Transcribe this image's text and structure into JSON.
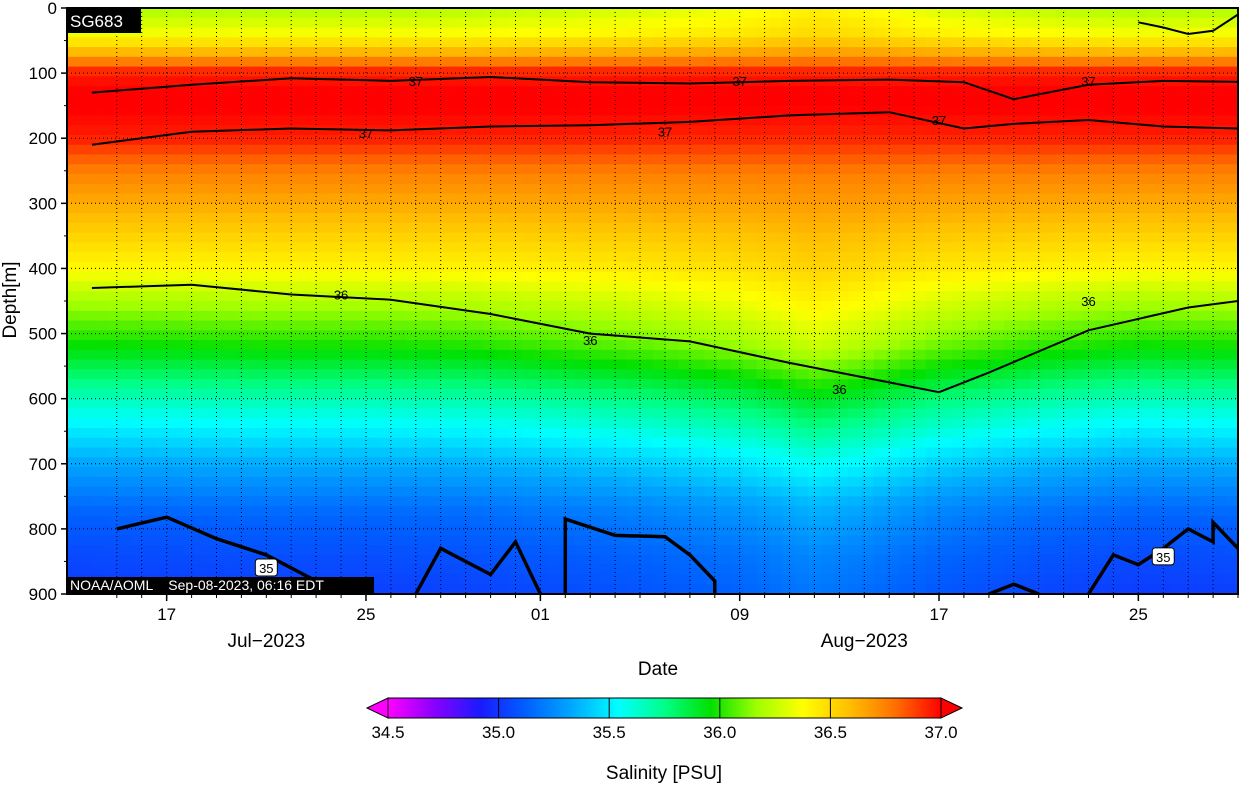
{
  "chart_data": {
    "type": "heatmap",
    "platform": "SG683",
    "credit": "NOAA/AOML    Sep-08-2023, 06:16 EDT",
    "xlabel": "Date",
    "ylabel": "Depth[m]",
    "x_range": [
      "2023-07-13",
      "2023-08-29"
    ],
    "x_ticks": [
      {
        "date": "2023-07-17",
        "label": "17"
      },
      {
        "date": "2023-07-25",
        "label": "25"
      },
      {
        "date": "2023-08-01",
        "label": "01"
      },
      {
        "date": "2023-08-09",
        "label": "09"
      },
      {
        "date": "2023-08-17",
        "label": "17"
      },
      {
        "date": "2023-08-25",
        "label": "25"
      }
    ],
    "month_labels": [
      {
        "date": "2023-07-21",
        "label": "Jul−2023"
      },
      {
        "date": "2023-08-14",
        "label": "Aug−2023"
      }
    ],
    "y_range": [
      900,
      0
    ],
    "y_reversed": true,
    "y_ticks": [
      0,
      100,
      200,
      300,
      400,
      500,
      600,
      700,
      800,
      900
    ],
    "grid": true,
    "colorbar": {
      "label": "Salinity [PSU]",
      "min": 34.5,
      "max": 37.0,
      "ticks": [
        "34.5",
        "35.0",
        "35.5",
        "36.0",
        "36.5",
        "37.0"
      ],
      "colors": [
        "#ff00ff",
        "#8a00ff",
        "#1a1aff",
        "#0060ff",
        "#00a8ff",
        "#00ffff",
        "#00ff88",
        "#00e000",
        "#9fff00",
        "#ffff00",
        "#ffc000",
        "#ff7000",
        "#ff0000"
      ],
      "extend": "both"
    },
    "columns": [
      {
        "date": "2023-07-13",
        "mix": 0.2
      },
      {
        "date": "2023-07-17",
        "mix": 0.22
      },
      {
        "date": "2023-07-21",
        "mix": 0.25
      },
      {
        "date": "2023-07-25",
        "mix": 0.25
      },
      {
        "date": "2023-07-29",
        "mix": 0.28
      },
      {
        "date": "2023-08-01",
        "mix": 0.35
      },
      {
        "date": "2023-08-05",
        "mix": 0.45
      },
      {
        "date": "2023-08-09",
        "mix": 0.6
      },
      {
        "date": "2023-08-12",
        "mix": 0.8
      },
      {
        "date": "2023-08-14",
        "mix": 0.7
      },
      {
        "date": "2023-08-17",
        "mix": 0.48
      },
      {
        "date": "2023-08-21",
        "mix": 0.32
      },
      {
        "date": "2023-08-25",
        "mix": 0.22
      },
      {
        "date": "2023-08-29",
        "mix": 0.25
      }
    ],
    "profile_a": [
      [
        0,
        36.1
      ],
      [
        40,
        36.3
      ],
      [
        70,
        36.6
      ],
      [
        100,
        36.95
      ],
      [
        140,
        37.02
      ],
      [
        200,
        36.95
      ],
      [
        250,
        36.75
      ],
      [
        330,
        36.55
      ],
      [
        400,
        36.35
      ],
      [
        440,
        36.15
      ],
      [
        480,
        36.0
      ],
      [
        550,
        35.75
      ],
      [
        620,
        35.5
      ],
      [
        700,
        35.25
      ],
      [
        780,
        35.05
      ],
      [
        900,
        34.95
      ]
    ],
    "profile_b": [
      [
        0,
        36.5
      ],
      [
        40,
        36.55
      ],
      [
        70,
        36.7
      ],
      [
        100,
        36.95
      ],
      [
        140,
        37.02
      ],
      [
        200,
        36.92
      ],
      [
        260,
        36.75
      ],
      [
        350,
        36.62
      ],
      [
        450,
        36.5
      ],
      [
        520,
        36.35
      ],
      [
        600,
        36.0
      ],
      [
        680,
        35.7
      ],
      [
        760,
        35.45
      ],
      [
        840,
        35.3
      ],
      [
        900,
        35.25
      ]
    ],
    "contours": [
      {
        "label": "37",
        "depth": [
          [
            13,
            130
          ],
          [
            17,
            118
          ],
          [
            21,
            108
          ],
          [
            25,
            112
          ],
          [
            29,
            106
          ],
          [
            33,
            114
          ],
          [
            37,
            116
          ],
          [
            41,
            112
          ],
          [
            45,
            110
          ],
          [
            48,
            114
          ],
          [
            50,
            140
          ],
          [
            53,
            118
          ],
          [
            56,
            112
          ],
          [
            60,
            114
          ]
        ]
      },
      {
        "label": "37",
        "depth": [
          [
            13,
            210
          ],
          [
            17,
            190
          ],
          [
            21,
            185
          ],
          [
            25,
            188
          ],
          [
            29,
            182
          ],
          [
            33,
            180
          ],
          [
            37,
            175
          ],
          [
            41,
            165
          ],
          [
            45,
            160
          ],
          [
            48,
            185
          ],
          [
            50,
            178
          ],
          [
            53,
            172
          ],
          [
            56,
            182
          ],
          [
            60,
            186
          ]
        ]
      },
      {
        "label": "36",
        "depth": [
          [
            13,
            430
          ],
          [
            17,
            425
          ],
          [
            21,
            440
          ],
          [
            25,
            448
          ],
          [
            29,
            470
          ],
          [
            33,
            500
          ],
          [
            37,
            512
          ],
          [
            41,
            545
          ],
          [
            45,
            575
          ],
          [
            47,
            590
          ],
          [
            49,
            560
          ],
          [
            53,
            495
          ],
          [
            57,
            460
          ],
          [
            60,
            445
          ]
        ]
      }
    ],
    "contour_labels": [
      {
        "text": "37",
        "date": "2023-07-27",
        "depth": 112
      },
      {
        "text": "37",
        "date": "2023-08-09",
        "depth": 112
      },
      {
        "text": "37",
        "date": "2023-08-23",
        "depth": 112
      },
      {
        "text": "37",
        "date": "2023-07-25",
        "depth": 192
      },
      {
        "text": "37",
        "date": "2023-08-06",
        "depth": 190
      },
      {
        "text": "37",
        "date": "2023-08-17",
        "depth": 172
      },
      {
        "text": "36",
        "date": "2023-07-24",
        "depth": 440
      },
      {
        "text": "36",
        "date": "2023-08-03",
        "depth": 510
      },
      {
        "text": "36",
        "date": "2023-08-13",
        "depth": 585
      },
      {
        "text": "36",
        "date": "2023-08-23",
        "depth": 450
      }
    ],
    "boxed_labels": [
      {
        "text": "35",
        "date": "2023-07-21",
        "depth": 860
      },
      {
        "text": "35",
        "date": "2023-08-26",
        "depth": 843
      }
    ],
    "deep_35_segments": [
      [
        [
          14,
          800
        ],
        [
          16,
          782
        ],
        [
          18,
          815
        ],
        [
          20,
          840
        ],
        [
          22,
          880
        ],
        [
          23,
          900
        ]
      ],
      [
        [
          26,
          900
        ],
        [
          27,
          830
        ],
        [
          29,
          870
        ],
        [
          30,
          820
        ],
        [
          31,
          900
        ]
      ],
      [
        [
          32,
          900
        ],
        [
          32.5,
          785
        ],
        [
          34,
          810
        ],
        [
          36,
          812
        ],
        [
          37,
          840
        ],
        [
          38,
          880
        ],
        [
          38.5,
          900
        ]
      ],
      [
        [
          49,
          900
        ],
        [
          50,
          885
        ],
        [
          51,
          900
        ]
      ],
      [
        [
          53,
          900
        ],
        [
          54,
          840
        ],
        [
          55,
          855
        ],
        [
          56,
          830
        ],
        [
          57,
          800
        ],
        [
          58,
          820
        ],
        [
          58.5,
          790
        ],
        [
          59,
          830
        ],
        [
          60,
          845
        ]
      ]
    ],
    "surface_35_segment": [
      [
        55,
        22
      ],
      [
        56,
        30
      ],
      [
        57,
        40
      ],
      [
        58,
        35
      ],
      [
        59,
        10
      ]
    ]
  }
}
